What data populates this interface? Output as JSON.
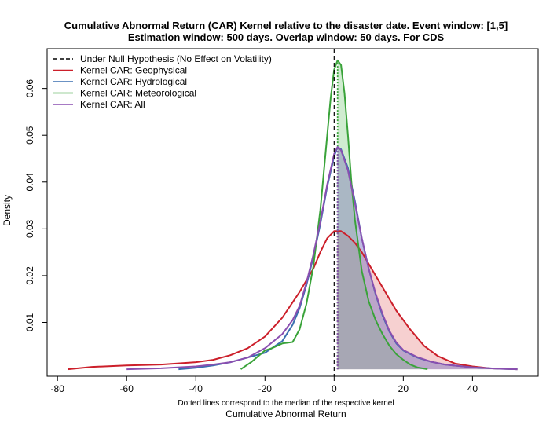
{
  "chart_data": {
    "type": "area",
    "title": "Cumulative Abnormal Return (CAR) Kernel relative to the disaster date. Event window: [1,5]",
    "subtitle": "Estimation window: 500 days. Overlap window: 50 days. For CDS",
    "xlabel": "Cumulative Abnormal Return",
    "x_note": "Dotted lines correspond to the median of the respective kernel",
    "ylabel": "Density",
    "xlim": [
      -83,
      59
    ],
    "ylim": [
      -0.0015,
      0.0685
    ],
    "x_ticks": [
      "-80",
      "-60",
      "-40",
      "-20",
      "0",
      "20",
      "40"
    ],
    "y_ticks": [
      "0.01",
      "0.02",
      "0.03",
      "0.04",
      "0.05",
      "0.06"
    ],
    "legend_position": "top-left",
    "null_line_x": 0,
    "legend": [
      {
        "label": "Under Null Hypothesis (No Effect on Volatility)",
        "color": "#000000",
        "style": "dashed"
      },
      {
        "label": "Kernel CAR: Geophysical",
        "color": "#cc1f2a",
        "style": "solid"
      },
      {
        "label": "Kernel CAR: Hydrological",
        "color": "#3a6fb0",
        "style": "solid"
      },
      {
        "label": "Kernel CAR: Meteorological",
        "color": "#3aa33a",
        "style": "solid"
      },
      {
        "label": "Kernel CAR: All",
        "color": "#8a4fb0",
        "style": "solid"
      }
    ],
    "series": [
      {
        "name": "Kernel CAR: Geophysical",
        "color": "#cc1f2a",
        "fill": "rgba(230,120,120,0.35)",
        "median": 1.0,
        "x": [
          -77,
          -70,
          -60,
          -50,
          -40,
          -35,
          -30,
          -25,
          -20,
          -15,
          -10,
          -6,
          -4,
          -2,
          0,
          2,
          4,
          6,
          8,
          10,
          14,
          18,
          22,
          26,
          30,
          35,
          40,
          45,
          53
        ],
        "y": [
          0,
          0.0005,
          0.0008,
          0.001,
          0.0015,
          0.002,
          0.003,
          0.0045,
          0.007,
          0.011,
          0.0165,
          0.0215,
          0.025,
          0.028,
          0.0295,
          0.0295,
          0.0285,
          0.027,
          0.025,
          0.0225,
          0.0175,
          0.0125,
          0.0085,
          0.005,
          0.0028,
          0.0012,
          0.0006,
          0.0002,
          0
        ]
      },
      {
        "name": "Kernel CAR: Hydrological",
        "color": "#3a6fb0",
        "fill": "rgba(110,150,210,0.30)",
        "median": 1.0,
        "x": [
          -45,
          -40,
          -35,
          -30,
          -25,
          -20,
          -15,
          -12,
          -10,
          -8,
          -6,
          -4,
          -2,
          0,
          1,
          2,
          4,
          6,
          8,
          10,
          12,
          14,
          16,
          18,
          20,
          24,
          28,
          32,
          40,
          48,
          53
        ],
        "y": [
          0,
          0.0003,
          0.0008,
          0.0015,
          0.0025,
          0.0035,
          0.006,
          0.0095,
          0.013,
          0.018,
          0.024,
          0.031,
          0.039,
          0.0455,
          0.0475,
          0.047,
          0.043,
          0.036,
          0.028,
          0.0215,
          0.016,
          0.0115,
          0.008,
          0.0055,
          0.004,
          0.0025,
          0.0016,
          0.001,
          0.0004,
          0.0001,
          0
        ]
      },
      {
        "name": "Kernel CAR: Meteorological",
        "color": "#3aa33a",
        "fill": "rgba(120,200,120,0.35)",
        "median": 1.0,
        "x": [
          -27,
          -24,
          -20,
          -18,
          -15,
          -12,
          -10,
          -8,
          -6,
          -4,
          -3,
          -2,
          -1,
          0,
          1,
          2,
          3,
          4,
          5,
          6,
          8,
          10,
          12,
          14,
          16,
          18,
          20,
          22,
          24,
          27
        ],
        "y": [
          0,
          0.0015,
          0.004,
          0.0045,
          0.0055,
          0.0058,
          0.0085,
          0.014,
          0.022,
          0.034,
          0.042,
          0.05,
          0.058,
          0.064,
          0.066,
          0.065,
          0.059,
          0.05,
          0.04,
          0.032,
          0.021,
          0.0145,
          0.0105,
          0.0075,
          0.005,
          0.0032,
          0.002,
          0.001,
          0.0004,
          0
        ]
      },
      {
        "name": "Kernel CAR: All",
        "color": "#8a4fb0",
        "fill": "rgba(150,110,190,0.30)",
        "median": 1.0,
        "x": [
          -60,
          -50,
          -40,
          -35,
          -30,
          -25,
          -20,
          -15,
          -12,
          -10,
          -8,
          -6,
          -4,
          -2,
          0,
          1,
          2,
          4,
          6,
          8,
          10,
          12,
          14,
          16,
          18,
          20,
          24,
          28,
          32,
          40,
          48,
          53
        ],
        "y": [
          0,
          0.0002,
          0.0006,
          0.001,
          0.0015,
          0.0025,
          0.0045,
          0.0075,
          0.0105,
          0.0135,
          0.0185,
          0.0245,
          0.0315,
          0.0395,
          0.046,
          0.0475,
          0.0468,
          0.0425,
          0.0355,
          0.028,
          0.0215,
          0.0162,
          0.0118,
          0.0082,
          0.0057,
          0.0041,
          0.0026,
          0.0016,
          0.001,
          0.0004,
          0.0001,
          0
        ]
      }
    ]
  }
}
